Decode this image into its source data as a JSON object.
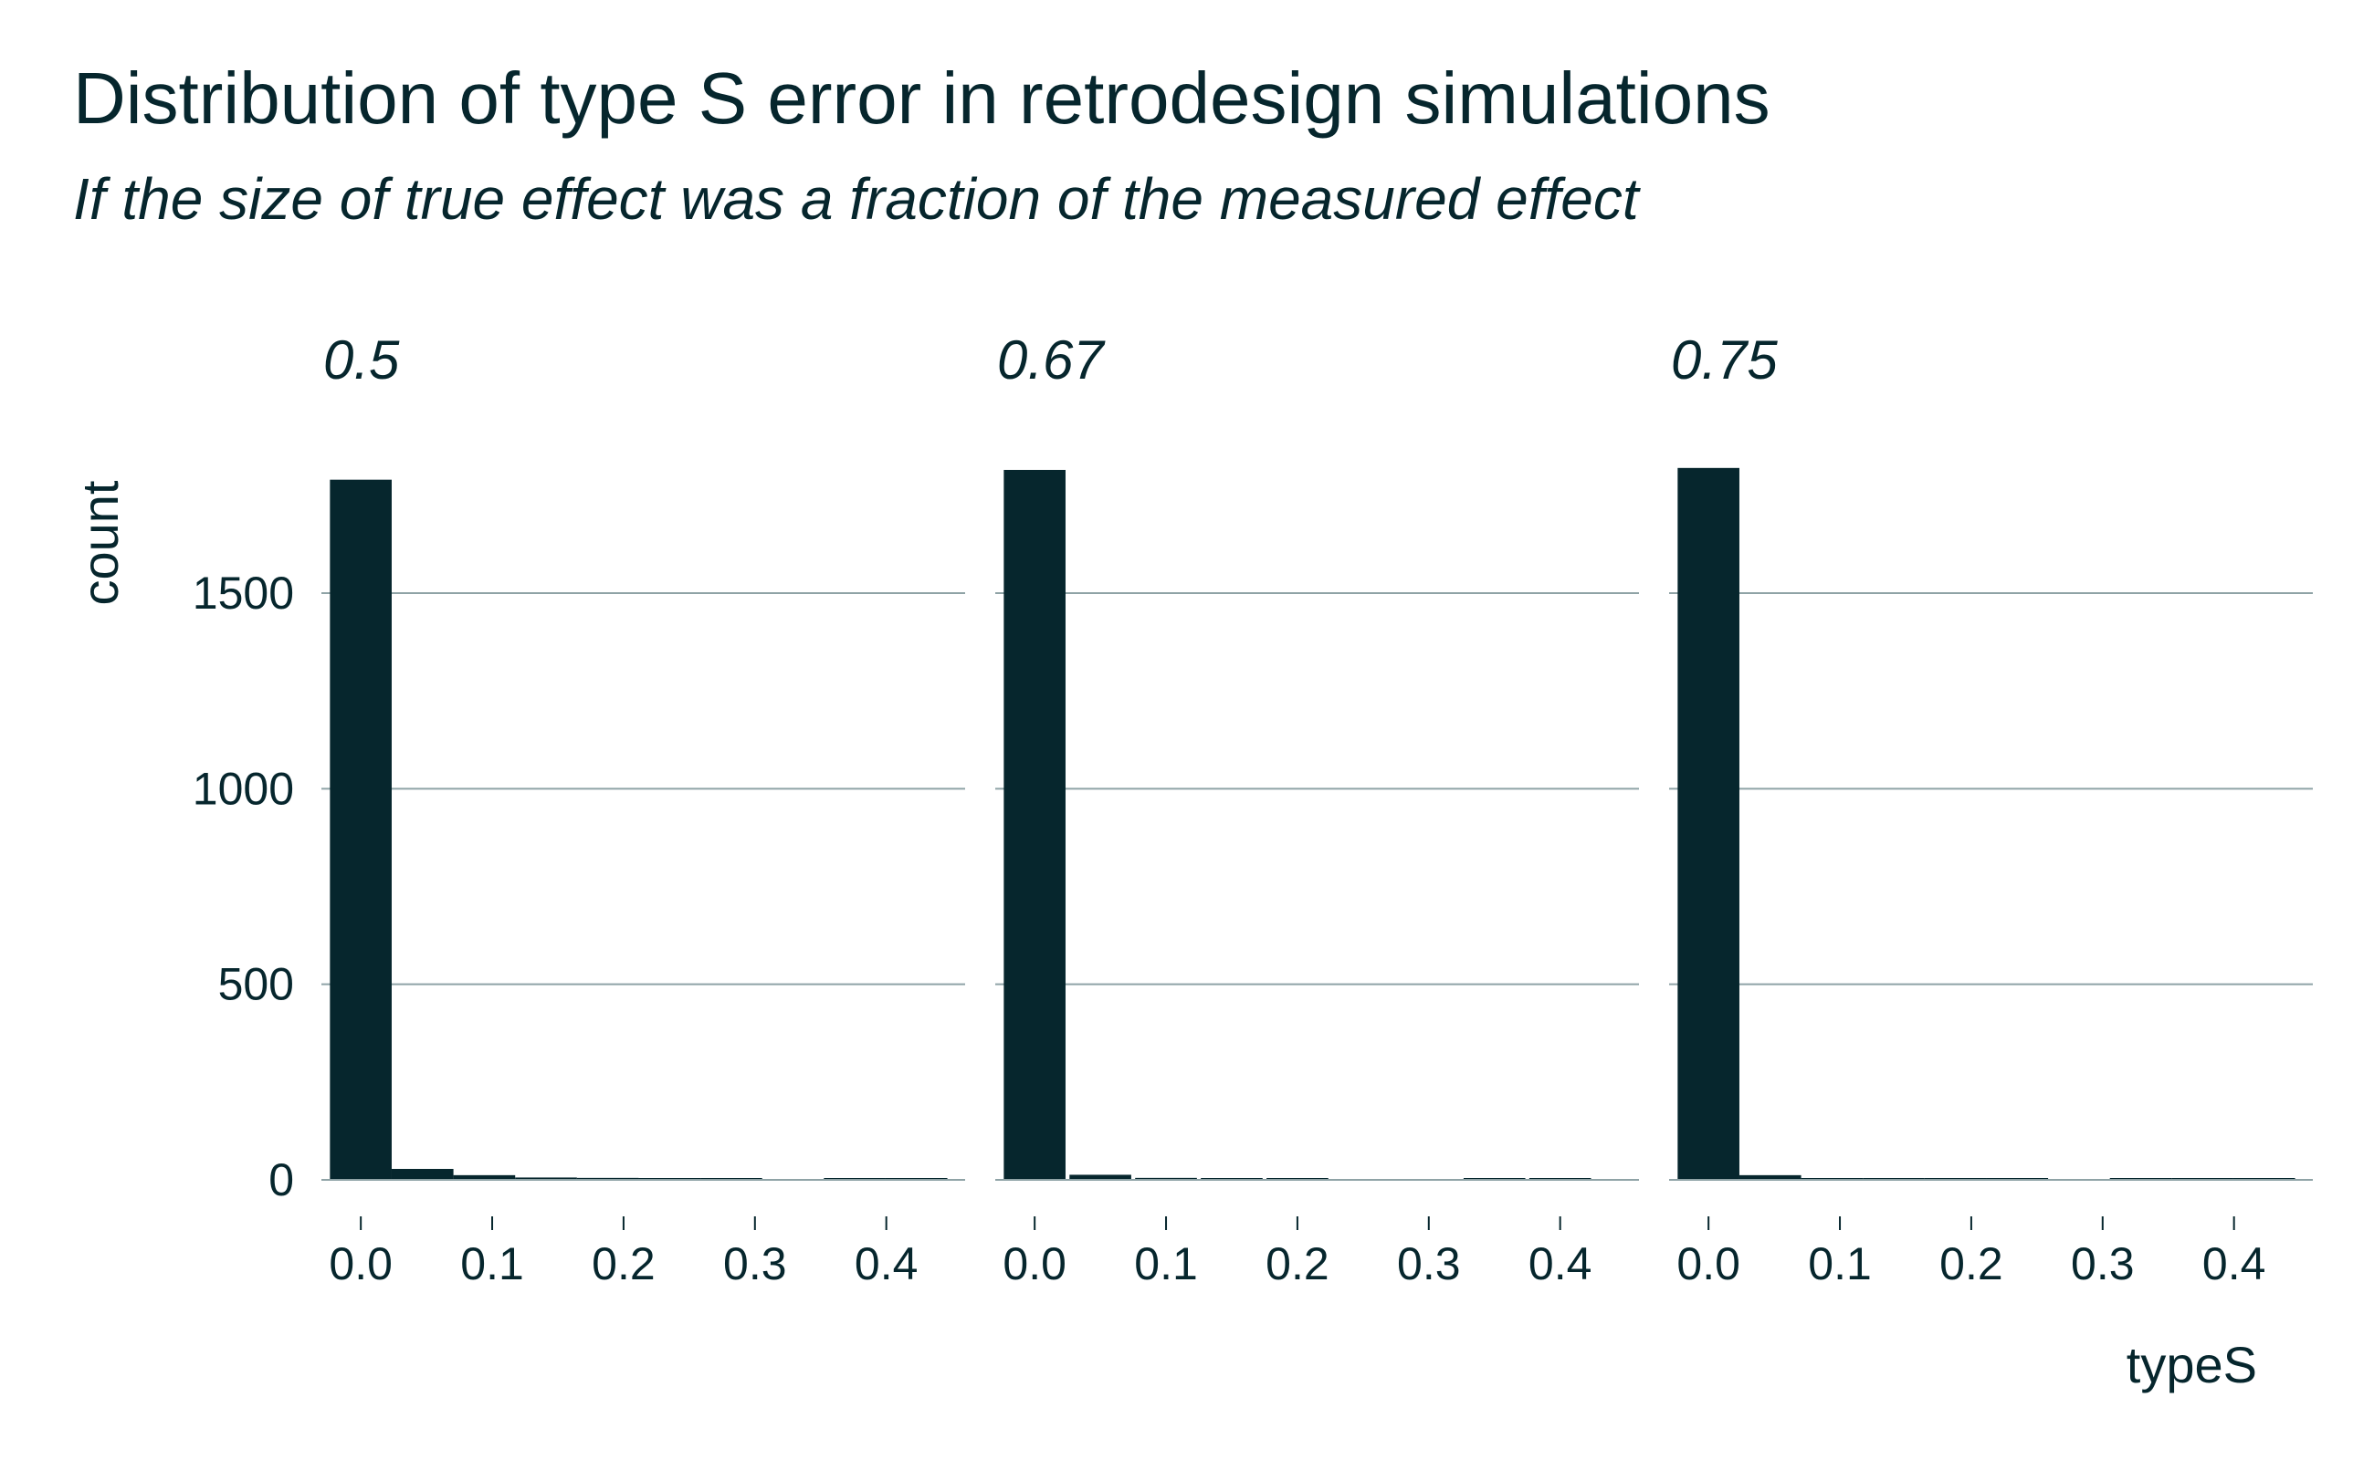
{
  "chart_data": {
    "type": "bar",
    "title": "Distribution of type S error in retrodesign simulations",
    "subtitle": "If the size of true effect was a fraction of the measured effect",
    "xlabel": "typeS",
    "ylabel": "count",
    "ylim": [
      0,
      1850
    ],
    "yticks": [
      0,
      500,
      1000,
      1500
    ],
    "ytick_labels": [
      "0",
      "500",
      "1000",
      "1500"
    ],
    "xlim": [
      -0.03,
      0.46
    ],
    "xticks": [
      0.0,
      0.1,
      0.2,
      0.3,
      0.4
    ],
    "xtick_labels": [
      "0.0",
      "0.1",
      "0.2",
      "0.3",
      "0.4"
    ],
    "grid": "horizontal",
    "bin_width": 0.047,
    "colors": {
      "bar": "#06262d",
      "grid": "#8fa3a6",
      "text": "#06262d"
    },
    "panels": [
      {
        "label": "0.5",
        "bins_center": [
          0.0,
          0.047,
          0.094,
          0.141,
          0.188,
          0.235,
          0.282,
          0.329,
          0.376,
          0.423
        ],
        "counts": [
          1790,
          28,
          12,
          6,
          5,
          4,
          2,
          0,
          3,
          1
        ]
      },
      {
        "label": "0.67",
        "bins_center": [
          0.0,
          0.05,
          0.1,
          0.15,
          0.2,
          0.25,
          0.3,
          0.35,
          0.4,
          0.45
        ],
        "counts": [
          1815,
          13,
          5,
          4,
          3,
          0,
          0,
          2,
          2,
          0
        ]
      },
      {
        "label": "0.75",
        "bins_center": [
          0.0,
          0.047,
          0.094,
          0.141,
          0.188,
          0.235,
          0.282,
          0.329,
          0.376,
          0.423
        ],
        "counts": [
          1820,
          12,
          4,
          3,
          4,
          1,
          0,
          2,
          3,
          1
        ]
      }
    ]
  }
}
